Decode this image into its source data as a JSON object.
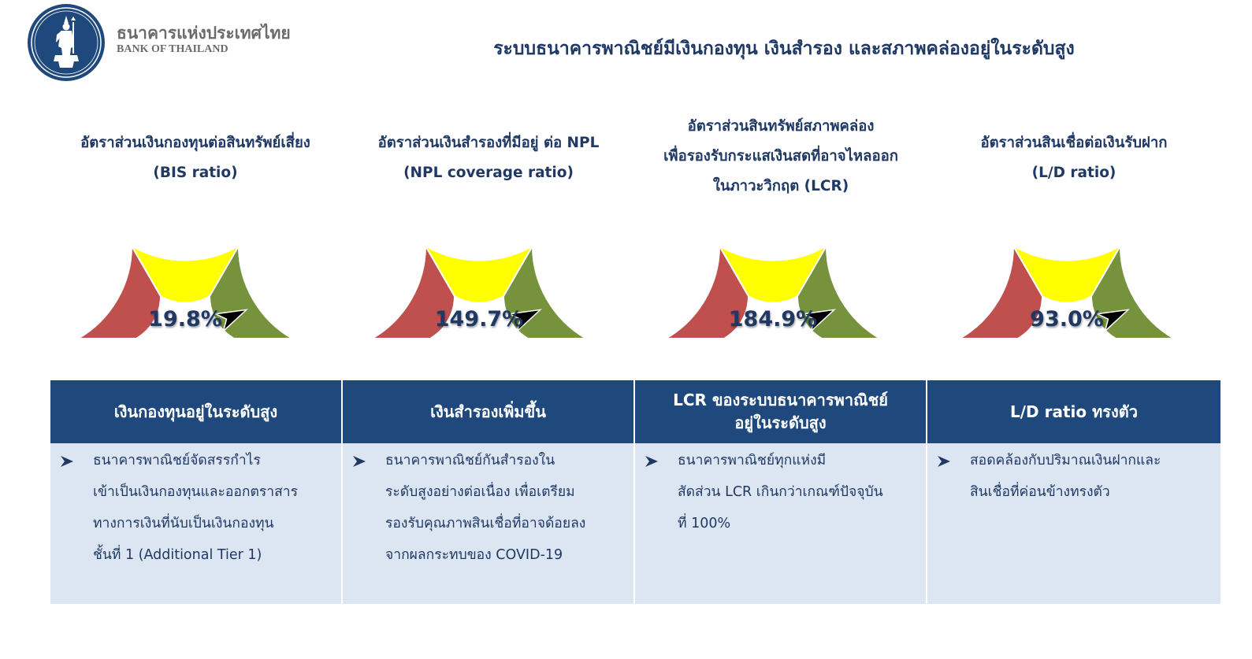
{
  "header": {
    "logo": "bank-of-thailand-seal",
    "brand_th": "ธนาคารแห่งประเทศไทย",
    "brand_en": "BANK OF THAILAND",
    "title": "ระบบธนาคารพาณิชย์มีเงินกองทุน เงินสำรอง และสภาพคล่องอยู่ในระดับสูง"
  },
  "colors": {
    "navy": "#1f3864",
    "header_fill": "#1f497d",
    "body_fill": "#dce6f2",
    "gauge_red": "#c0504d",
    "gauge_yellow": "#ffff00",
    "gauge_green": "#76923c"
  },
  "gauges": [
    {
      "label_lines": [
        "อัตราส่วนเงินกองทุนต่อสินทรัพย์เสี่ยง",
        "(BIS ratio)"
      ],
      "value": "19.8%",
      "needle_pct": 0.86
    },
    {
      "label_lines": [
        "อัตราส่วนเงินสำรองที่มีอยู่ ต่อ NPL",
        "(NPL coverage ratio)"
      ],
      "value": "149.7%",
      "needle_pct": 0.86
    },
    {
      "label_lines": [
        "อัตราส่วนสินทรัพย์สภาพคล่อง",
        "เพื่อรองรับกระแสเงินสดที่อาจไหลออก",
        "ในภาวะวิกฤต (LCR)"
      ],
      "value": "184.9%",
      "needle_pct": 0.86
    },
    {
      "label_lines": [
        "อัตราส่วนสินเชื่อต่อเงินรับฝาก",
        "(L/D ratio)"
      ],
      "value": "93.0%",
      "needle_pct": 0.86
    }
  ],
  "summary": [
    {
      "header_lines": [
        "เงินกองทุนอยู่ในระดับสูง"
      ],
      "bullet_icon": "arrow-bullet-icon",
      "body_lines": [
        "ธนาคารพาณิชย์จัดสรรกำไร",
        "เข้าเป็นเงินกองทุนและออกตราสาร",
        "ทางการเงินที่นับเป็นเงินกองทุน",
        "ชั้นที่ 1 (Additional Tier 1)"
      ]
    },
    {
      "header_lines": [
        "เงินสำรองเพิ่มขึ้น"
      ],
      "bullet_icon": "arrow-bullet-icon",
      "body_lines": [
        "ธนาคารพาณิชย์กันสำรองใน",
        "ระดับสูงอย่างต่อเนื่อง เพื่อเตรียม",
        "รองรับคุณภาพสินเชื่อที่อาจด้อยลง",
        "จากผลกระทบของ COVID-19"
      ]
    },
    {
      "header_lines": [
        "LCR ของระบบธนาคารพาณิชย์",
        "อยู่ในระดับสูง"
      ],
      "bullet_icon": "arrow-bullet-icon",
      "body_lines": [
        "ธนาคารพาณิชย์ทุกแห่งมี",
        "สัดส่วน LCR เกินกว่าเกณฑ์ปัจจุบัน",
        "ที่ 100%"
      ]
    },
    {
      "header_lines": [
        "L/D ratio ทรงตัว"
      ],
      "bullet_icon": "arrow-bullet-icon",
      "body_lines": [
        "สอดคล้องกับปริมาณเงินฝากและ",
        "สินเชื่อที่ค่อนข้างทรงตัว"
      ]
    }
  ]
}
